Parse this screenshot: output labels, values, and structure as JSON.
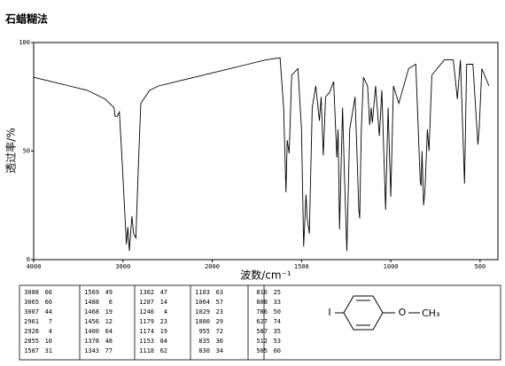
{
  "header": {
    "title": "石蜡糊法"
  },
  "chart_data": {
    "type": "line",
    "xlabel": "波数/cm⁻¹",
    "ylabel": "透过率/%",
    "xlim": [
      4000,
      400
    ],
    "xticks": [
      4000,
      3000,
      2000,
      1500,
      1000,
      500
    ],
    "ylim": [
      0,
      100
    ],
    "yticks": [
      0,
      50,
      100
    ],
    "color": "#000000",
    "x": [
      4000,
      3800,
      3600,
      3400,
      3200,
      3100,
      3088,
      3065,
      3040,
      3007,
      2990,
      2961,
      2945,
      2928,
      2900,
      2880,
      2855,
      2830,
      2800,
      2700,
      2600,
      2400,
      2200,
      2000,
      1900,
      1800,
      1700,
      1620,
      1600,
      1587,
      1580,
      1569,
      1555,
      1520,
      1500,
      1488,
      1475,
      1468,
      1456,
      1440,
      1420,
      1400,
      1390,
      1378,
      1365,
      1343,
      1320,
      1302,
      1295,
      1287,
      1270,
      1260,
      1246,
      1230,
      1200,
      1179,
      1174,
      1165,
      1153,
      1130,
      1118,
      1110,
      1103,
      1085,
      1064,
      1050,
      1029,
      1015,
      1000,
      985,
      955,
      900,
      860,
      835,
      830,
      825,
      816,
      808,
      795,
      786,
      770,
      700,
      650,
      627,
      610,
      587,
      575,
      540,
      512,
      505,
      490,
      450
    ],
    "values": [
      84,
      82,
      80,
      78,
      74,
      70,
      66,
      66,
      68,
      44,
      30,
      7,
      15,
      4,
      20,
      12,
      10,
      40,
      72,
      78,
      80,
      82,
      84,
      86,
      88,
      90,
      92,
      93,
      70,
      31,
      55,
      49,
      85,
      88,
      60,
      6,
      30,
      19,
      12,
      70,
      80,
      64,
      75,
      48,
      75,
      77,
      82,
      47,
      60,
      14,
      70,
      40,
      4,
      60,
      75,
      23,
      19,
      60,
      84,
      80,
      62,
      70,
      63,
      80,
      57,
      78,
      23,
      70,
      29,
      80,
      72,
      88,
      90,
      36,
      34,
      50,
      25,
      33,
      60,
      50,
      85,
      92,
      92,
      74,
      92,
      35,
      90,
      90,
      53,
      60,
      88,
      80
    ]
  },
  "peak_table": {
    "columns": [
      [
        [
          3088,
          66
        ],
        [
          3065,
          66
        ],
        [
          3007,
          44
        ],
        [
          2961,
          7
        ],
        [
          2928,
          4
        ],
        [
          2855,
          10
        ],
        [
          1587,
          31
        ]
      ],
      [
        [
          1569,
          49
        ],
        [
          1488,
          6
        ],
        [
          1468,
          19
        ],
        [
          1456,
          12
        ],
        [
          1400,
          64
        ],
        [
          1378,
          48
        ],
        [
          1343,
          77
        ]
      ],
      [
        [
          1302,
          47
        ],
        [
          1287,
          14
        ],
        [
          1246,
          4
        ],
        [
          1179,
          23
        ],
        [
          1174,
          19
        ],
        [
          1153,
          84
        ],
        [
          1118,
          62
        ]
      ],
      [
        [
          1103,
          63
        ],
        [
          1064,
          57
        ],
        [
          1029,
          23
        ],
        [
          1000,
          29
        ],
        [
          955,
          72
        ],
        [
          835,
          36
        ],
        [
          830,
          34
        ]
      ],
      [
        [
          816,
          25
        ],
        [
          808,
          33
        ],
        [
          786,
          50
        ],
        [
          627,
          74
        ],
        [
          587,
          35
        ],
        [
          512,
          53
        ],
        [
          505,
          60
        ]
      ]
    ]
  },
  "structure": {
    "substituent_left": "I",
    "oxygen": "O",
    "methyl": "CH₃"
  }
}
